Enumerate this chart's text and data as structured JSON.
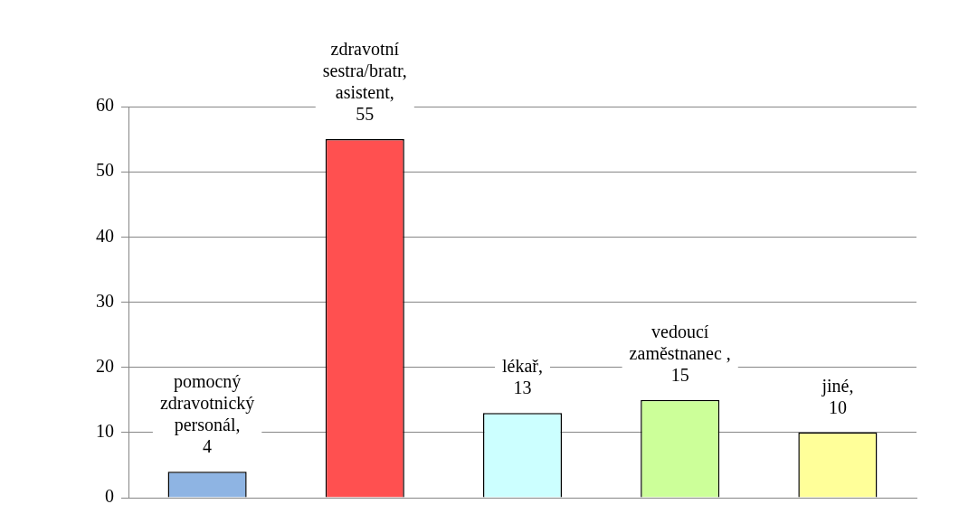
{
  "chart_data": {
    "type": "bar",
    "categories": [
      null,
      null,
      null,
      null,
      null
    ],
    "values": [
      4,
      55,
      13,
      15,
      10
    ],
    "value_labels": [
      "pomocný zdravotnický personál, 4",
      "zdravotní sestra/bratr, asistent, 55",
      "lékař, 13",
      "vedoucí zaměstnanec , 15",
      "jiné, 10"
    ],
    "colors": [
      "#8eb4e3",
      "#ff5050",
      "#ccffff",
      "#ccff99",
      "#ffff99"
    ],
    "ylim": [
      0,
      60
    ],
    "yticks": [
      0,
      10,
      20,
      30,
      40,
      50,
      60
    ],
    "grid": "y",
    "legend": false,
    "tick_labels": "y"
  }
}
